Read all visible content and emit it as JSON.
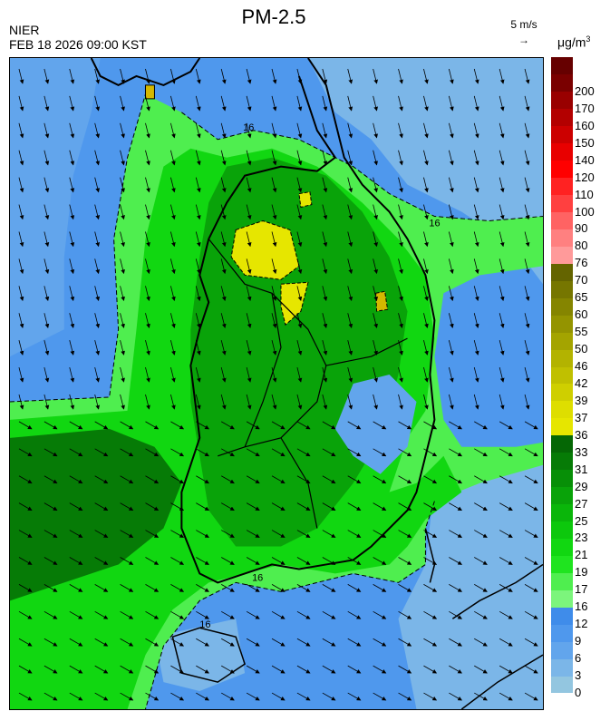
{
  "header": {
    "title": "PM-2.5",
    "agency": "NIER",
    "datetime": "FEB 18 2026 09:00 KST",
    "wind_ref": "5 m/s",
    "unit_base": "μg/m",
    "unit_sup": "3"
  },
  "legend": {
    "bins": [
      {
        "label": "0",
        "color": "#93c6e0"
      },
      {
        "label": "3",
        "color": "#7bb6e8"
      },
      {
        "label": "6",
        "color": "#62a5ec"
      },
      {
        "label": "9",
        "color": "#4f98ed"
      },
      {
        "label": "12",
        "color": "#3f8cea"
      },
      {
        "label": "16",
        "color": "#7cf57c"
      },
      {
        "label": "17",
        "color": "#4fee4f"
      },
      {
        "label": "19",
        "color": "#1fe41f"
      },
      {
        "label": "21",
        "color": "#11d711"
      },
      {
        "label": "23",
        "color": "#0cc80c"
      },
      {
        "label": "25",
        "color": "#0ab60a"
      },
      {
        "label": "27",
        "color": "#09a309"
      },
      {
        "label": "29",
        "color": "#078f07"
      },
      {
        "label": "31",
        "color": "#067b06"
      },
      {
        "label": "33",
        "color": "#056705"
      },
      {
        "label": "36",
        "color": "#e6e600"
      },
      {
        "label": "37",
        "color": "#dede00"
      },
      {
        "label": "39",
        "color": "#cfcf00"
      },
      {
        "label": "42",
        "color": "#c0c000"
      },
      {
        "label": "46",
        "color": "#b3b300"
      },
      {
        "label": "50",
        "color": "#a4a400"
      },
      {
        "label": "55",
        "color": "#949400"
      },
      {
        "label": "60",
        "color": "#858500"
      },
      {
        "label": "65",
        "color": "#767600"
      },
      {
        "label": "70",
        "color": "#646400"
      },
      {
        "label": "76",
        "color": "#ff9a9a"
      },
      {
        "label": "80",
        "color": "#ff8080"
      },
      {
        "label": "90",
        "color": "#ff6363"
      },
      {
        "label": "100",
        "color": "#ff4040"
      },
      {
        "label": "110",
        "color": "#ff2222"
      },
      {
        "label": "120",
        "color": "#ff0000"
      },
      {
        "label": "140",
        "color": "#e80000"
      },
      {
        "label": "150",
        "color": "#cc0000"
      },
      {
        "label": "160",
        "color": "#b30000"
      },
      {
        "label": "170",
        "color": "#990000"
      },
      {
        "label": "200",
        "color": "#7a0000"
      }
    ],
    "top_color": "#660000"
  },
  "contour_labels": [
    "16",
    "16",
    "16",
    "16"
  ],
  "colors": {
    "sea_low": "#62a5ec",
    "sea_mid": "#4f98ed",
    "green_mid": "#11d711",
    "green_dark": "#078f07",
    "yellow": "#e6e600",
    "coast": "#000000"
  }
}
